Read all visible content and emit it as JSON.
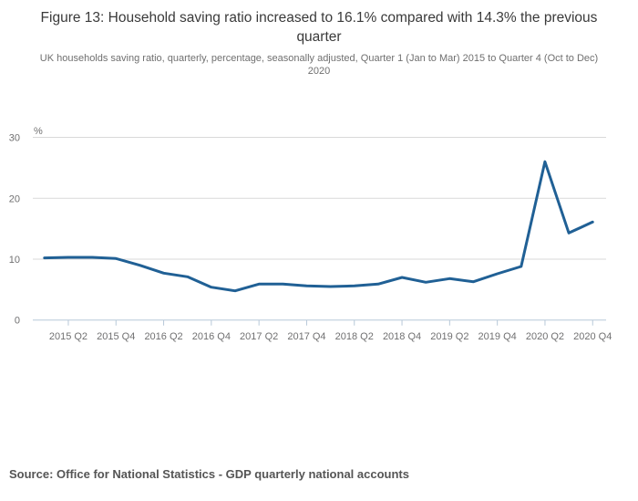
{
  "header": {
    "title": "Figure 13: Household saving ratio increased to 16.1% compared with 14.3% the previous quarter",
    "subtitle": "UK households saving ratio, quarterly, percentage, seasonally adjusted, Quarter 1 (Jan to Mar) 2015 to Quarter 4 (Oct to Dec) 2020"
  },
  "footer": {
    "source": "Source: Office for National Statistics - GDP quarterly national accounts"
  },
  "chart_data": {
    "type": "line",
    "title": "Figure 13: Household saving ratio increased to 16.1% compared with 14.3% the previous quarter",
    "series_name": "UK households saving ratio",
    "unit_label": "%",
    "categories": [
      "2015 Q1",
      "2015 Q2",
      "2015 Q3",
      "2015 Q4",
      "2016 Q1",
      "2016 Q2",
      "2016 Q3",
      "2016 Q4",
      "2017 Q1",
      "2017 Q2",
      "2017 Q3",
      "2017 Q4",
      "2018 Q1",
      "2018 Q2",
      "2018 Q3",
      "2018 Q4",
      "2019 Q1",
      "2019 Q2",
      "2019 Q3",
      "2019 Q4",
      "2020 Q1",
      "2020 Q2",
      "2020 Q3",
      "2020 Q4"
    ],
    "values": [
      10.2,
      10.3,
      10.3,
      10.1,
      9.0,
      7.7,
      7.1,
      5.4,
      4.8,
      5.9,
      5.9,
      5.6,
      5.5,
      5.6,
      5.9,
      7.0,
      6.2,
      6.8,
      6.3,
      7.6,
      8.8,
      26.0,
      14.3,
      16.1
    ],
    "x_tick_labels": [
      "2015 Q2",
      "2015 Q4",
      "2016 Q2",
      "2016 Q4",
      "2017 Q2",
      "2017 Q4",
      "2018 Q2",
      "2018 Q4",
      "2019 Q2",
      "2019 Q4",
      "2020 Q2",
      "2020 Q4"
    ],
    "y_ticks": [
      0,
      10,
      20,
      30
    ],
    "ylim": [
      0,
      30
    ],
    "grid": "horizontal-only",
    "legend": "none",
    "colors": {
      "line": "#206095",
      "gridline": "#d9d9d9",
      "axis": "#b7c8d8",
      "tick_label": "#707071",
      "unit_label": "#707071"
    }
  }
}
